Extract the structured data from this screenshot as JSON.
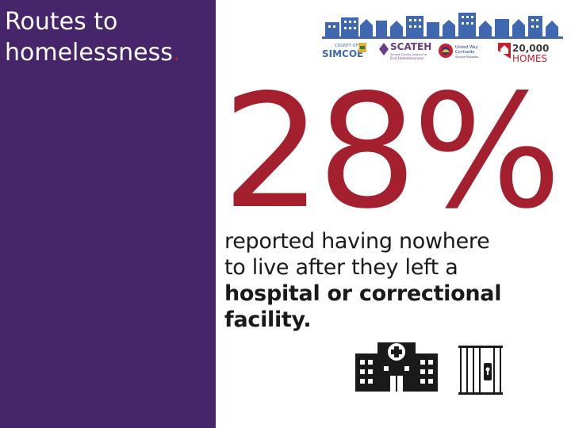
{
  "sidebar": {
    "title_line1": "Routes to",
    "title_line2": "homelessness",
    "title_dot": "."
  },
  "logos": {
    "simcoe_small": "COUNTY OF",
    "simcoe": "SIMCOE",
    "scateh": "SCATEH",
    "scateh_sub1": "Simcoe County Alliance to",
    "scateh_sub2": "End Homelessness",
    "united_way_1": "United Way",
    "united_way_2": "Centraide",
    "united_way_3": "Simcoe Muskoka",
    "homes_number": "20,000",
    "homes_word": "HOMES"
  },
  "stat": {
    "value": "28%",
    "line1": "reported having nowhere",
    "line2": "to live after they left a",
    "bold_line": "hospital or correctional",
    "bold_end": "facility."
  },
  "icons": {
    "hospital": "hospital-icon",
    "jail": "jail-cell-icon"
  },
  "colors": {
    "sidebar": "#46256a",
    "accent": "#a4202e",
    "text": "#1a1a1a",
    "skyline": "#3f68b0"
  }
}
